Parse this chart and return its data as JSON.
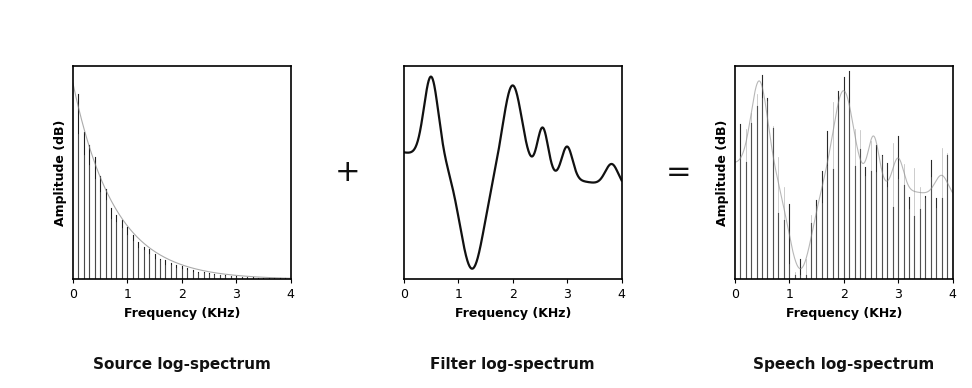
{
  "fig_width": 9.72,
  "fig_height": 3.88,
  "dpi": 100,
  "background_color": "#ffffff",
  "xlabel": "Frequency (KHz)",
  "ylabel1": "Amplitude (dB)",
  "ylabel3": "Amplitude (dB)",
  "xlim": [
    0,
    4
  ],
  "xticks": [
    0,
    1,
    2,
    3,
    4
  ],
  "label1": "Source log-spectrum",
  "label2": "Filter log-spectrum",
  "label3": "Speech log-spectrum",
  "operator1": "+",
  "operator2": "=",
  "label_fontsize": 11,
  "tick_fontsize": 9,
  "axis_label_fontsize": 9,
  "operator_fontsize": 22,
  "dark_color": "#111111",
  "gray_color": "#888888"
}
